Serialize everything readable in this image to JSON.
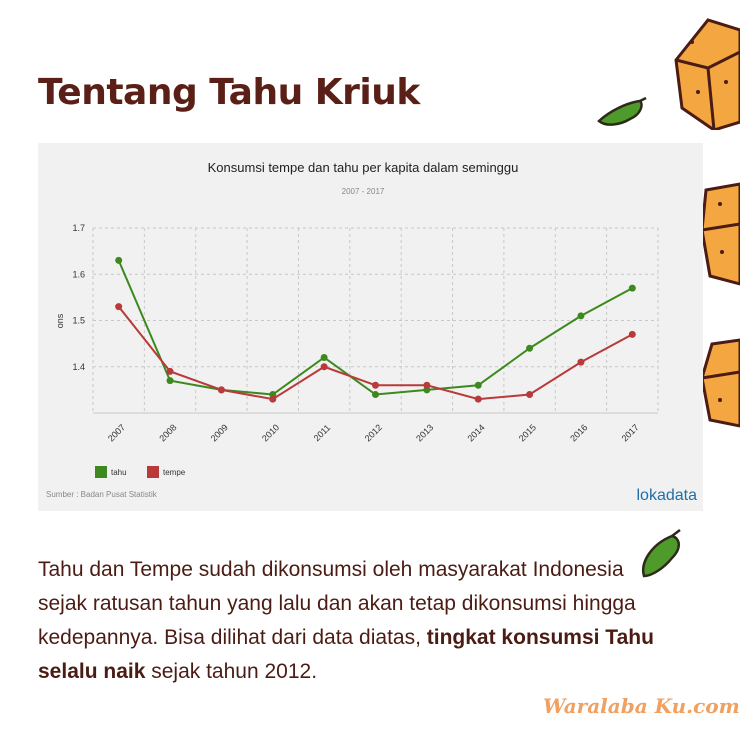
{
  "page": {
    "title": "Tentang Tahu Kriuk",
    "paragraph": {
      "intro": "Tahu dan Tempe sudah dikonsumsi oleh masyarakat Indonesia sejak ratusan tahun yang lalu dan akan tetap dikonsumsi hingga kedepannya. Bisa dilihat dari data diatas,",
      "highlight": "tingkat konsumsi Tahu selalu naik",
      "outro": "sejak tahun 2012."
    },
    "brand": "Waralaba Ku.com"
  },
  "chart_data": {
    "type": "line",
    "title": "Konsumsi tempe dan tahu per kapita dalam seminggu",
    "subtitle": "2007 - 2017",
    "ylabel": "ons",
    "xlabel": "",
    "ylim": [
      1.3,
      1.7
    ],
    "yticks": [
      "1.4",
      "1.5",
      "1.6",
      "1.7"
    ],
    "categories": [
      "2007",
      "2008",
      "2009",
      "2010",
      "2011",
      "2012",
      "2013",
      "2014",
      "2015",
      "2016",
      "2017"
    ],
    "series": [
      {
        "name": "tahu",
        "color": "#3c8a1e",
        "values": [
          1.63,
          1.37,
          1.35,
          1.34,
          1.42,
          1.34,
          1.35,
          1.36,
          1.44,
          1.51,
          1.57
        ]
      },
      {
        "name": "tempe",
        "color": "#b83a3a",
        "values": [
          1.53,
          1.39,
          1.35,
          1.33,
          1.4,
          1.36,
          1.36,
          1.33,
          1.34,
          1.41,
          1.47
        ]
      }
    ],
    "grid": true,
    "legend": "bottom-left",
    "source": "Sumber : Badan Pusat Statistik",
    "logo": "lokadata"
  }
}
